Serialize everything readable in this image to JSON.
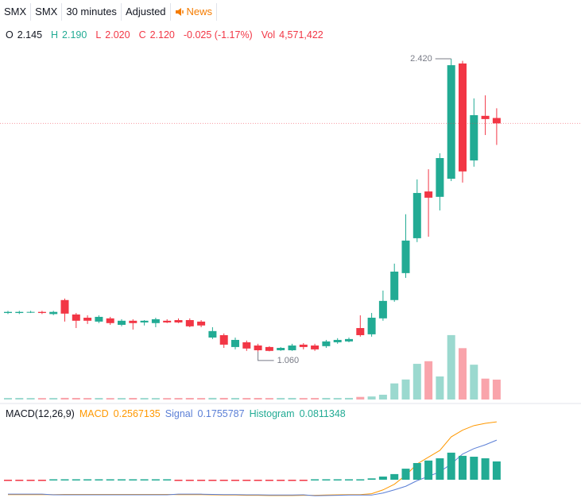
{
  "toolbar": {
    "symbol": "SMX",
    "exchange": "SMX",
    "interval": "30 minutes",
    "adjustment": "Adjusted",
    "news": "News"
  },
  "legend": {
    "o_label": "O",
    "o": "2.145",
    "h_label": "H",
    "h": "2.190",
    "l_label": "L",
    "l": "2.020",
    "c_label": "C",
    "c": "2.120",
    "change": "-0.025 (-1.17%)",
    "vol_label": "Vol",
    "vol": "4,571,422"
  },
  "chart_data": [
    {
      "type": "candlestick",
      "open": [
        1.24,
        1.24,
        1.245,
        1.245,
        1.235,
        1.3,
        1.233,
        1.218,
        1.2,
        1.215,
        1.185,
        1.204,
        1.196,
        1.193,
        1.204,
        1.207,
        1.207,
        1.2,
        1.126,
        1.137,
        1.082,
        1.104,
        1.089,
        1.082,
        1.067,
        1.067,
        1.093,
        1.089,
        1.086,
        1.104,
        1.108,
        1.17,
        1.141,
        1.215,
        1.3,
        1.425,
        1.587,
        1.804,
        1.779,
        1.863,
        2.398,
        1.948,
        2.155,
        2.145
      ],
      "high": [
        1.25,
        1.25,
        1.25,
        1.25,
        1.25,
        1.307,
        1.24,
        1.229,
        1.229,
        1.222,
        1.211,
        1.211,
        1.207,
        1.218,
        1.211,
        1.215,
        1.215,
        1.207,
        1.174,
        1.145,
        1.126,
        1.112,
        1.097,
        1.086,
        1.082,
        1.097,
        1.1,
        1.097,
        1.115,
        1.123,
        1.126,
        1.229,
        1.24,
        1.344,
        1.469,
        1.698,
        1.86,
        1.907,
        1.981,
        2.42,
        2.41,
        2.236,
        2.25,
        2.19
      ],
      "low": [
        1.235,
        1.235,
        1.24,
        1.235,
        1.23,
        1.2,
        1.17,
        1.189,
        1.193,
        1.185,
        1.178,
        1.163,
        1.182,
        1.174,
        1.193,
        1.193,
        1.174,
        1.174,
        1.119,
        1.078,
        1.071,
        1.064,
        1.06,
        1.062,
        1.064,
        1.064,
        1.071,
        1.064,
        1.078,
        1.097,
        1.104,
        1.13,
        1.13,
        1.204,
        1.292,
        1.403,
        1.569,
        1.594,
        1.716,
        1.852,
        1.845,
        1.919,
        2.066,
        2.02
      ],
      "close": [
        1.245,
        1.245,
        1.245,
        1.24,
        1.245,
        1.237,
        1.204,
        1.204,
        1.222,
        1.193,
        1.204,
        1.193,
        1.204,
        1.211,
        1.196,
        1.196,
        1.178,
        1.182,
        1.156,
        1.093,
        1.115,
        1.075,
        1.067,
        1.064,
        1.078,
        1.089,
        1.082,
        1.071,
        1.108,
        1.115,
        1.119,
        1.137,
        1.218,
        1.296,
        1.432,
        1.576,
        1.797,
        1.775,
        1.959,
        2.39,
        1.897,
        2.158,
        2.14,
        2.12
      ],
      "volume": [
        350000,
        360000,
        340000,
        330000,
        350000,
        380000,
        360000,
        340000,
        350000,
        330000,
        340000,
        360000,
        350000,
        340000,
        330000,
        350000,
        360000,
        340000,
        380000,
        370000,
        360000,
        350000,
        360000,
        340000,
        350000,
        360000,
        340000,
        350000,
        360000,
        350000,
        370000,
        600000,
        700000,
        1100000,
        3700000,
        4600000,
        8200000,
        8800000,
        5300000,
        14800000,
        11800000,
        8000000,
        4800000,
        4571422
      ],
      "up_color": "#22ab94",
      "down_color": "#f23645",
      "ylim": [
        0.831,
        2.582
      ],
      "volume_ylim": [
        0,
        25000000
      ],
      "high_label": "2.420",
      "low_label": "1.060"
    },
    {
      "type": "macd",
      "title": "MACD(12,26,9)",
      "series": [
        {
          "name": "MACD",
          "color": "#ff9800",
          "value_label": "0.2567135",
          "values": [
            -0.066,
            -0.066,
            -0.066,
            -0.066,
            -0.066,
            -0.065,
            -0.065,
            -0.065,
            -0.065,
            -0.065,
            -0.065,
            -0.065,
            -0.065,
            -0.065,
            -0.065,
            -0.066,
            -0.066,
            -0.066,
            -0.067,
            -0.068,
            -0.068,
            -0.069,
            -0.069,
            -0.07,
            -0.07,
            -0.07,
            -0.069,
            -0.069,
            -0.068,
            -0.067,
            -0.066,
            -0.066,
            -0.062,
            -0.045,
            -0.02,
            0.02,
            0.07,
            0.1,
            0.13,
            0.19,
            0.22,
            0.24,
            0.25,
            0.2567135
          ]
        },
        {
          "name": "Signal",
          "color": "#5b7fd6",
          "value_label": "0.1755787",
          "values": [
            -0.064,
            -0.064,
            -0.064,
            -0.064,
            -0.067,
            -0.067,
            -0.067,
            -0.067,
            -0.067,
            -0.067,
            -0.067,
            -0.067,
            -0.067,
            -0.067,
            -0.067,
            -0.064,
            -0.064,
            -0.064,
            -0.065,
            -0.066,
            -0.066,
            -0.067,
            -0.067,
            -0.068,
            -0.068,
            -0.068,
            -0.067,
            -0.071,
            -0.07,
            -0.069,
            -0.068,
            -0.068,
            -0.068,
            -0.059,
            -0.045,
            -0.029,
            -0.004,
            0.015,
            0.035,
            0.07,
            0.114,
            0.138,
            0.155,
            0.1755787
          ]
        },
        {
          "name": "Histogram",
          "color": "#22ab94",
          "negative_color": "#f23645",
          "value_label": "0.0811348",
          "values": [
            -0.002,
            -0.002,
            -0.002,
            -0.002,
            0.002,
            0.002,
            0.002,
            0.002,
            0.002,
            0.002,
            0.002,
            0.002,
            0.002,
            0.002,
            0.002,
            -0.002,
            -0.002,
            -0.002,
            -0.002,
            -0.002,
            -0.002,
            -0.002,
            -0.002,
            -0.002,
            -0.002,
            -0.002,
            -0.002,
            0.002,
            0.002,
            0.002,
            0.002,
            0.002,
            0.006,
            0.014,
            0.025,
            0.049,
            0.074,
            0.085,
            0.095,
            0.12,
            0.106,
            0.102,
            0.095,
            0.0811348
          ]
        }
      ],
      "ylim": [
        -0.081,
        0.331
      ]
    }
  ]
}
